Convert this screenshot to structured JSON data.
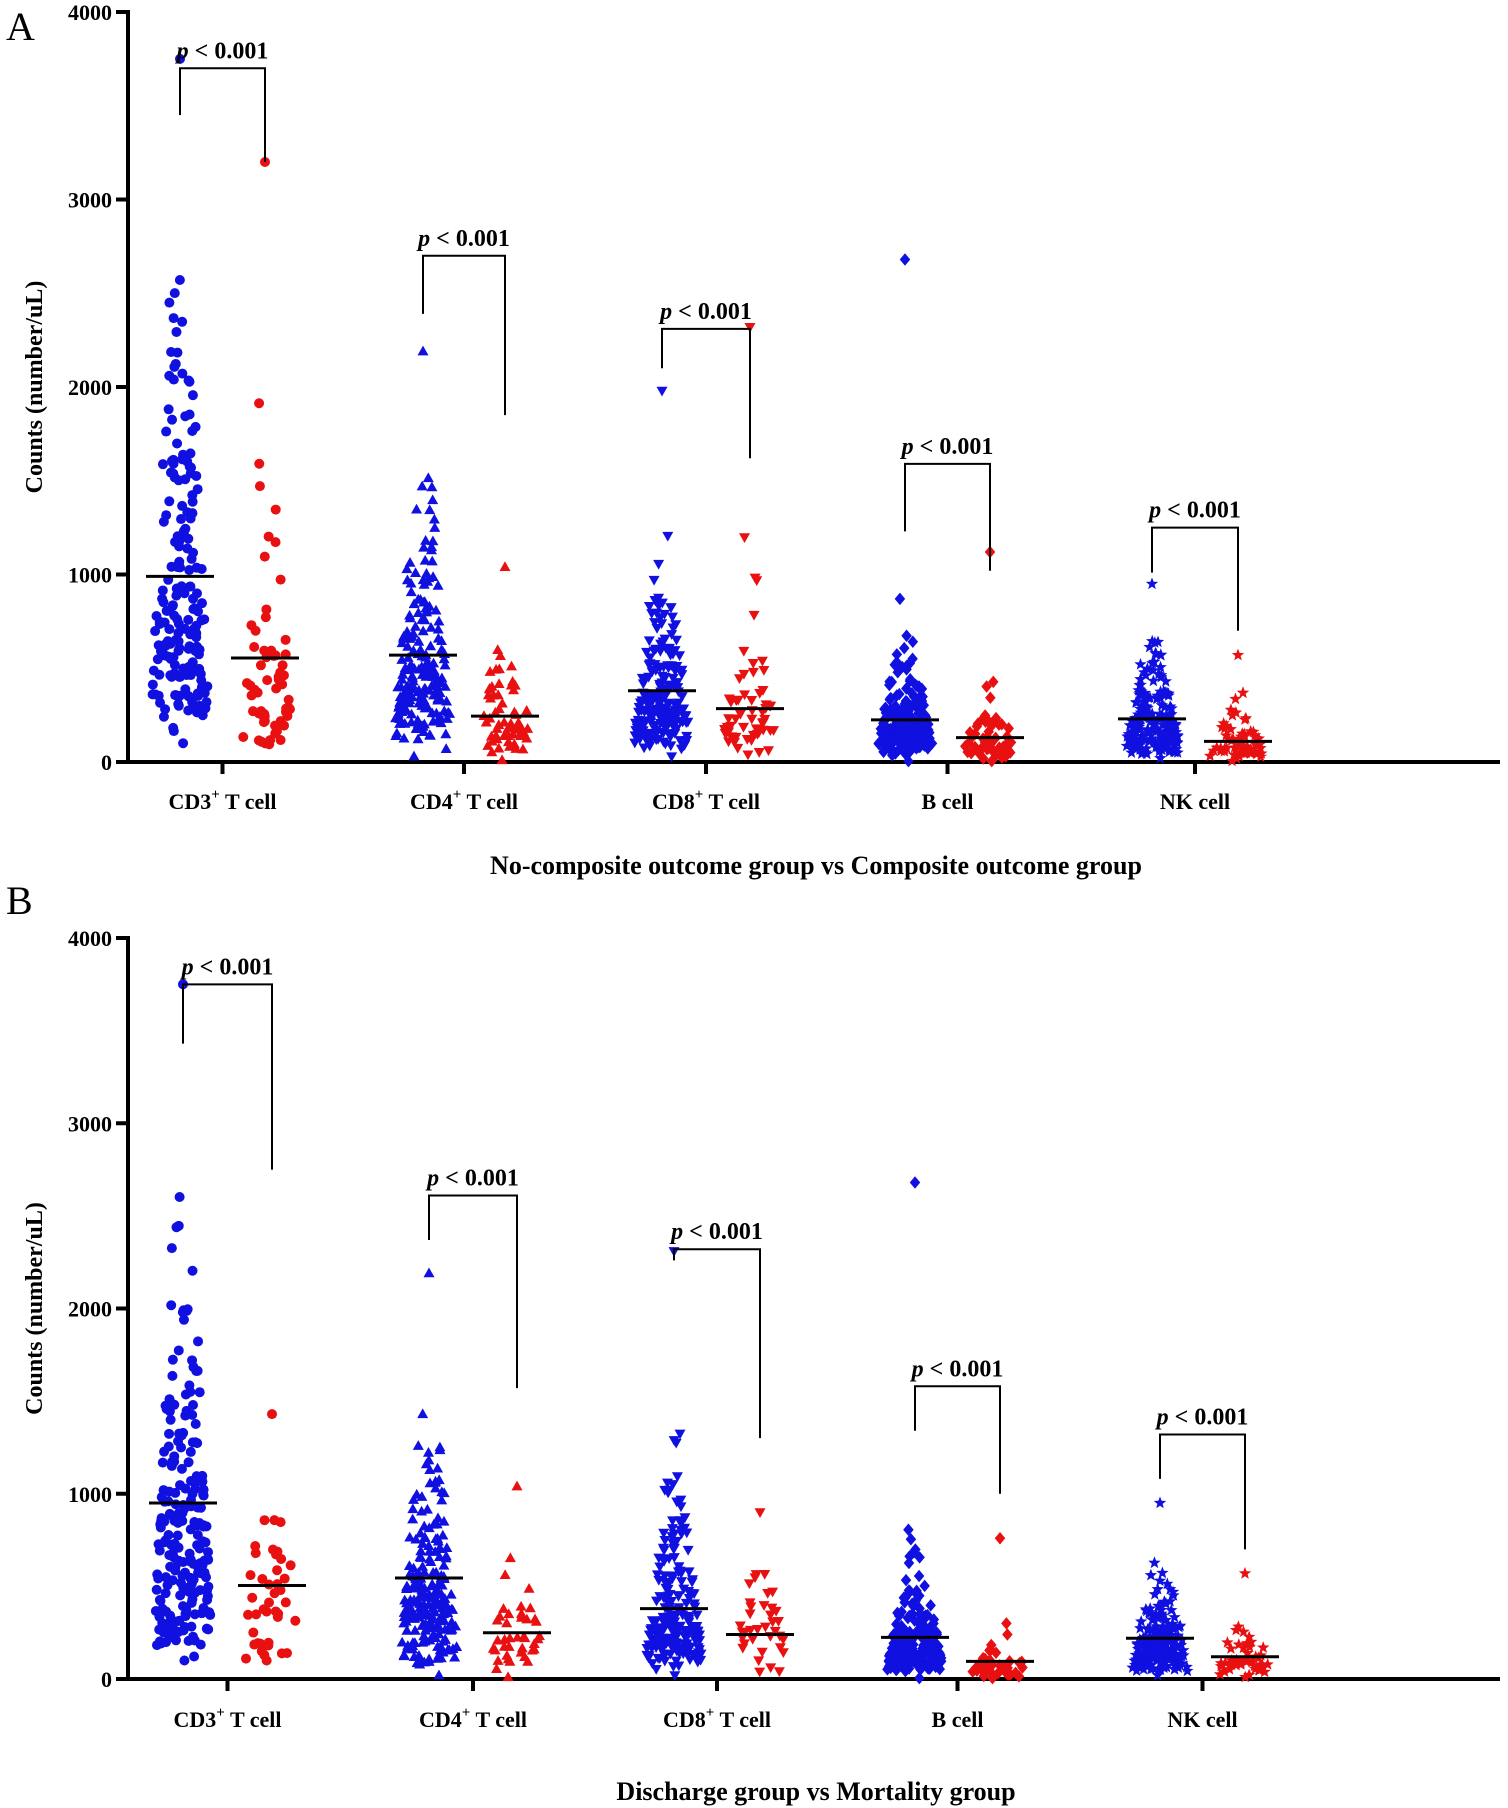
{
  "chart_data": [
    {
      "panel_label": "A",
      "type": "scatter",
      "subtype": "dot-plot-with-mean",
      "ylabel": "Counts (number/uL)",
      "xlabel": "No-composite outcome group vs Composite outcome group",
      "ylim": [
        0,
        4000
      ],
      "yticks": [
        "0",
        "1000",
        "2000",
        "3000",
        "4000"
      ],
      "colors": {
        "group1": "#1010e0",
        "group2": "#e81010"
      },
      "categories": [
        {
          "base": "CD3",
          "sup": "+",
          "tail": " T cell",
          "marker": "circle",
          "groups": [
            {
              "mean": 990,
              "min": 100,
              "max": 3750,
              "n": 190
            },
            {
              "mean": 555,
              "min": 95,
              "max": 3200,
              "n": 60
            }
          ],
          "bracket": {
            "text": "< 0.001",
            "p": "p",
            "left_top": 3450,
            "right_top": 3200,
            "top": 3700
          }
        },
        {
          "base": "CD4",
          "sup": "+",
          "tail": " T cell",
          "marker": "triangle-up",
          "groups": [
            {
              "mean": 570,
              "min": 30,
              "max": 2190,
              "n": 190
            },
            {
              "mean": 245,
              "min": 10,
              "max": 1040,
              "n": 60
            }
          ],
          "bracket": {
            "text": "< 0.001",
            "p": "p",
            "left_top": 2390,
            "right_top": 1850,
            "top": 2700
          }
        },
        {
          "base": "CD8",
          "sup": "+",
          "tail": " T cell",
          "marker": "triangle-down",
          "groups": [
            {
              "mean": 380,
              "min": 30,
              "max": 1980,
              "n": 190
            },
            {
              "mean": 285,
              "min": 40,
              "max": 2320,
              "n": 55
            }
          ],
          "bracket": {
            "text": "< 0.001",
            "p": "p",
            "left_top": 2100,
            "right_top": 1620,
            "top": 2310
          }
        },
        {
          "base": "B cell",
          "sup": "",
          "tail": "",
          "marker": "diamond",
          "groups": [
            {
              "mean": 225,
              "min": 5,
              "max": 2680,
              "n": 190
            },
            {
              "mean": 130,
              "min": 5,
              "max": 1120,
              "n": 60
            }
          ],
          "bracket": {
            "text": "< 0.001",
            "p": "p",
            "left_top": 1230,
            "right_top": 1020,
            "top": 1590
          }
        },
        {
          "base": "NK cell",
          "sup": "",
          "tail": "",
          "marker": "star",
          "groups": [
            {
              "mean": 230,
              "min": 20,
              "max": 950,
              "n": 190
            },
            {
              "mean": 110,
              "min": 5,
              "max": 570,
              "n": 65
            }
          ],
          "bracket": {
            "text": "< 0.001",
            "p": "p",
            "left_top": 1010,
            "right_top": 700,
            "top": 1250
          }
        }
      ]
    },
    {
      "panel_label": "B",
      "type": "scatter",
      "subtype": "dot-plot-with-mean",
      "ylabel": "Counts (number/uL)",
      "xlabel": "Discharge group vs Mortality group",
      "ylim": [
        0,
        4000
      ],
      "yticks": [
        "0",
        "1000",
        "2000",
        "3000",
        "4000"
      ],
      "colors": {
        "group1": "#1010e0",
        "group2": "#e81010"
      },
      "categories": [
        {
          "base": "CD3",
          "sup": "+",
          "tail": " T cell",
          "marker": "circle",
          "groups": [
            {
              "mean": 950,
              "min": 100,
              "max": 3750,
              "n": 210
            },
            {
              "mean": 505,
              "min": 100,
              "max": 1430,
              "n": 40
            }
          ],
          "bracket": {
            "text": "< 0.001",
            "p": "p",
            "left_top": 3430,
            "right_top": 2750,
            "top": 3750
          }
        },
        {
          "base": "CD4",
          "sup": "+",
          "tail": " T cell",
          "marker": "triangle-up",
          "groups": [
            {
              "mean": 545,
              "min": 20,
              "max": 2190,
              "n": 210
            },
            {
              "mean": 250,
              "min": 10,
              "max": 1040,
              "n": 40
            }
          ],
          "bracket": {
            "text": "< 0.001",
            "p": "p",
            "left_top": 2370,
            "right_top": 1570,
            "top": 2610
          }
        },
        {
          "base": "CD8",
          "sup": "+",
          "tail": " T cell",
          "marker": "triangle-down",
          "groups": [
            {
              "mean": 380,
              "min": 20,
              "max": 2310,
              "n": 210
            },
            {
              "mean": 240,
              "min": 40,
              "max": 900,
              "n": 35
            }
          ],
          "bracket": {
            "text": "< 0.001",
            "p": "p",
            "left_top": 2260,
            "right_top": 1300,
            "top": 2320
          }
        },
        {
          "base": "B cell",
          "sup": "",
          "tail": "",
          "marker": "diamond",
          "groups": [
            {
              "mean": 225,
              "min": 5,
              "max": 2680,
              "n": 210
            },
            {
              "mean": 95,
              "min": 5,
              "max": 760,
              "n": 40
            }
          ],
          "bracket": {
            "text": "< 0.001",
            "p": "p",
            "left_top": 1340,
            "right_top": 1000,
            "top": 1580
          }
        },
        {
          "base": "NK cell",
          "sup": "",
          "tail": "",
          "marker": "star",
          "groups": [
            {
              "mean": 220,
              "min": 20,
              "max": 950,
              "n": 210
            },
            {
              "mean": 120,
              "min": 10,
              "max": 570,
              "n": 45
            }
          ],
          "bracket": {
            "text": "< 0.001",
            "p": "p",
            "left_top": 1080,
            "right_top": 700,
            "top": 1320
          }
        }
      ]
    }
  ]
}
